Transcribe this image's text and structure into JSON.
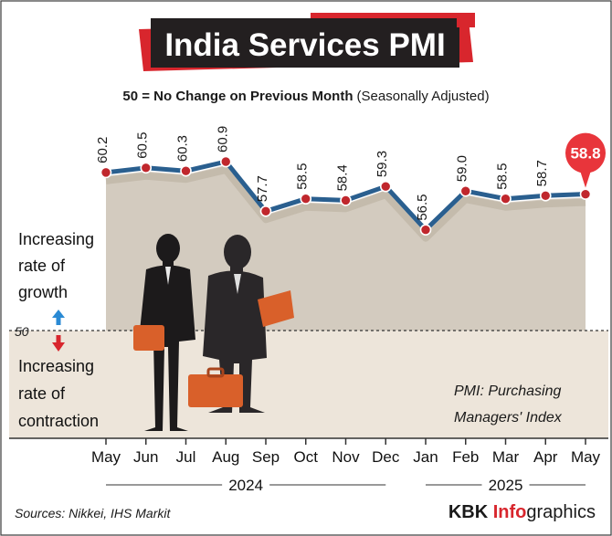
{
  "title": "India Services PMI",
  "subtitle_bold": "50 = No Change on Previous Month",
  "subtitle_regular": "(Seasonally Adjusted)",
  "left_labels": {
    "growth": [
      "Increasing",
      "rate of",
      "growth"
    ],
    "contraction": [
      "Increasing",
      "rate of",
      "contraction"
    ],
    "baseline_value": "50"
  },
  "note_lines": [
    "PMI: Purchasing",
    "Managers' Index"
  ],
  "source": "Sources: Nikkei, IHS Markit",
  "brand": {
    "prefix": "KBK ",
    "accent": "Info",
    "suffix": "graphics"
  },
  "colors": {
    "line": "#2a5f8f",
    "marker": "#c0272d",
    "highlight": "#e8353b",
    "area": "#d3cbbf",
    "lower_band": "#ede5da",
    "title_bg": "#231f20",
    "up_arrow": "#2a8ad4",
    "down_arrow": "#d8262d"
  },
  "chart_data": {
    "type": "line",
    "categories": [
      "May",
      "Jun",
      "Jul",
      "Aug",
      "Sep",
      "Oct",
      "Nov",
      "Dec",
      "Jan",
      "Feb",
      "Mar",
      "Apr",
      "May"
    ],
    "values": [
      60.2,
      60.5,
      60.3,
      60.9,
      57.7,
      58.5,
      58.4,
      59.3,
      56.5,
      59.0,
      58.5,
      58.7,
      58.8
    ],
    "value_labels": [
      "60.2",
      "60.5",
      "60.3",
      "60.9",
      "57.7",
      "58.5",
      "58.4",
      "59.3",
      "56.5",
      "59.0",
      "58.5",
      "58.7",
      "58.8"
    ],
    "highlight_index": 12,
    "year_groups": [
      {
        "label": "2024",
        "start": 0,
        "end": 7
      },
      {
        "label": "2025",
        "start": 8,
        "end": 12
      }
    ],
    "reference_line": 50,
    "title": "India Services PMI"
  }
}
